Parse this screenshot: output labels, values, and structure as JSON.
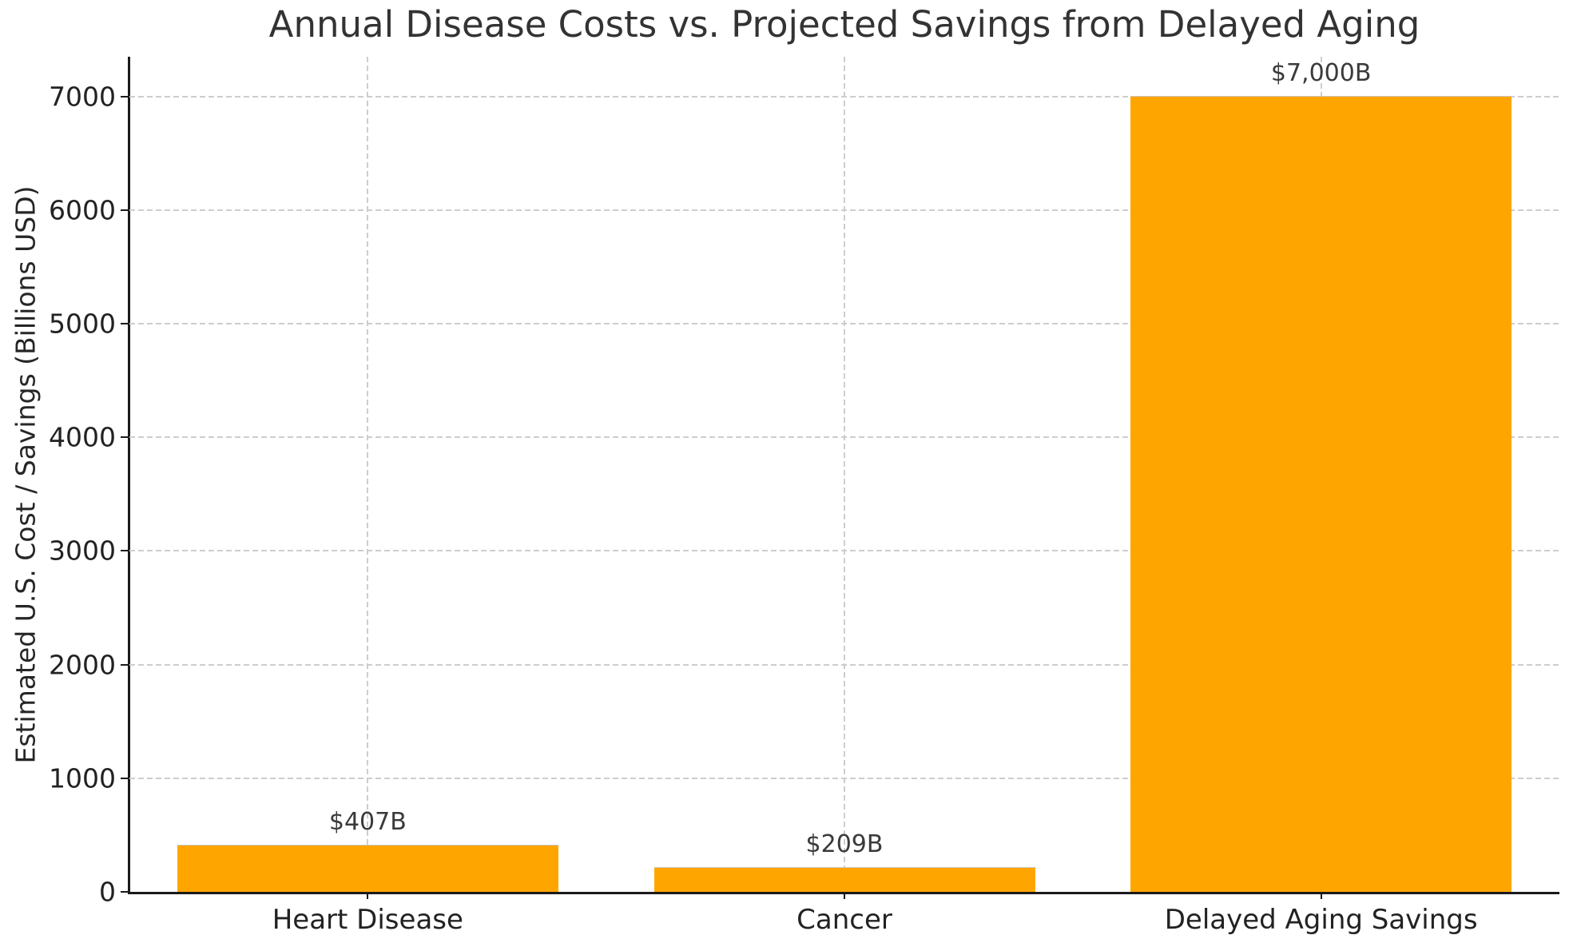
{
  "title": "Annual Disease Costs vs. Projected Savings from Delayed Aging",
  "colors": {
    "bar": "#FFA500",
    "grid": "#cdcdcd",
    "axis": "#1a1a1a",
    "text": "#333333"
  },
  "chart_data": {
    "type": "bar",
    "title": "Annual Disease Costs vs. Projected Savings from Delayed Aging",
    "xlabel": "",
    "ylabel": "Estimated U.S. Cost / Savings (Billions USD)",
    "categories": [
      "Heart Disease",
      "Cancer",
      "Delayed Aging Savings"
    ],
    "values": [
      407,
      209,
      7000
    ],
    "bar_labels": [
      "$407B",
      "$209B",
      "$7,000B"
    ],
    "bar_color": "#FFA500",
    "ylim": [
      0,
      7350
    ],
    "yticks": [
      0,
      1000,
      2000,
      3000,
      4000,
      5000,
      6000,
      7000
    ],
    "grid": "dashed both-axes light-gray",
    "legend": null
  }
}
